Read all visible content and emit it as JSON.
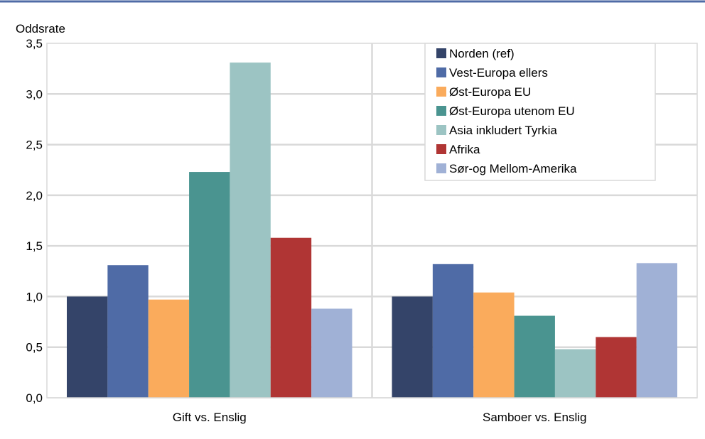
{
  "chart_data": {
    "type": "bar",
    "ylabel": "Oddsrate",
    "ylim": [
      0,
      3.5
    ],
    "yticks": [
      "0,0",
      "0,5",
      "1,0",
      "1,5",
      "2,0",
      "2,5",
      "3,0",
      "3,5"
    ],
    "categories": [
      "Gift vs. Enslig",
      "Samboer vs. Enslig"
    ],
    "grid": true,
    "legend_position": "top-right",
    "series": [
      {
        "name": "Norden (ref)",
        "color": "#344469",
        "values": [
          1.0,
          1.0
        ]
      },
      {
        "name": "Vest-Europa ellers",
        "color": "#4F6BA6",
        "values": [
          1.31,
          1.32
        ]
      },
      {
        "name": "Øst-Europa EU",
        "color": "#FAAB5C",
        "values": [
          0.97,
          1.04
        ]
      },
      {
        "name": "Øst-Europa utenom EU",
        "color": "#4A9490",
        "values": [
          2.23,
          0.81
        ]
      },
      {
        "name": "Asia inkludert Tyrkia",
        "color": "#9CC4C3",
        "values": [
          3.31,
          0.48
        ]
      },
      {
        "name": "Afrika",
        "color": "#B03534",
        "values": [
          1.58,
          0.6
        ]
      },
      {
        "name": "Sør-og Mellom-Amerika",
        "color": "#A0B1D6",
        "values": [
          0.88,
          1.33
        ]
      }
    ]
  }
}
